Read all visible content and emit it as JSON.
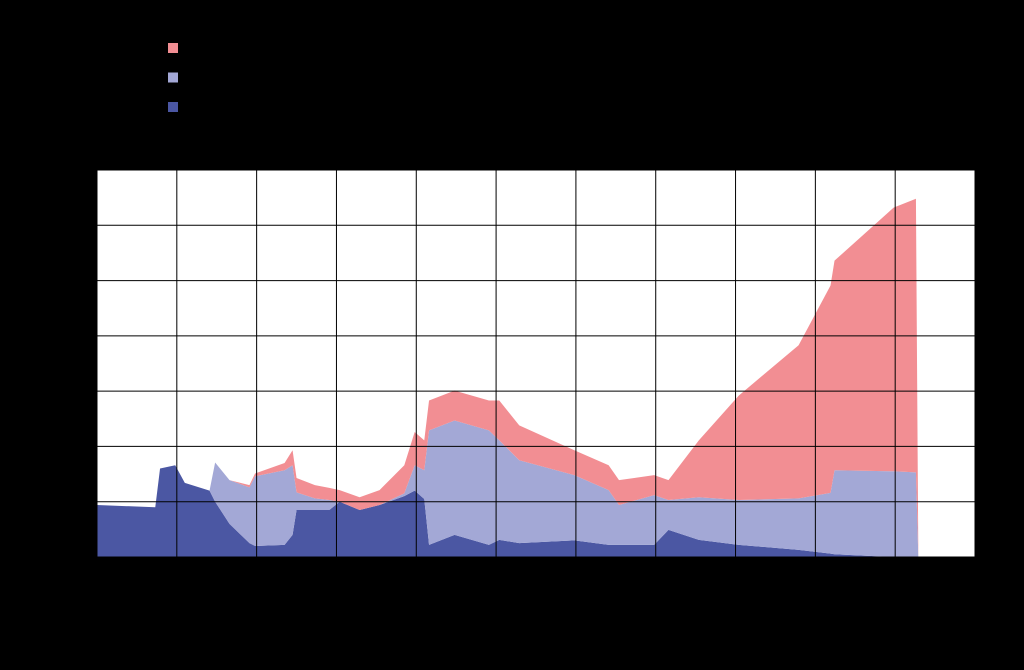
{
  "chart_data": {
    "type": "stacked_area",
    "x": [
      0,
      0.73,
      0.79,
      0.98,
      1.1,
      1.41,
      1.48,
      1.66,
      1.91,
      1.98,
      2.35,
      2.45,
      2.5,
      2.73,
      2.91,
      3.04,
      3.29,
      3.54,
      3.85,
      3.98,
      4.1,
      4.16,
      4.48,
      4.91,
      5.04,
      5.29,
      5.98,
      6.41,
      6.54,
      6.98,
      7.16,
      7.54,
      8.04,
      8.79,
      9.19,
      9.24,
      9.98,
      10.26,
      10.29
    ],
    "series": [
      {
        "color": "#4b57a3",
        "values": [
          0.94,
          0.9,
          1.6,
          1.66,
          1.34,
          1.2,
          1.0,
          0.6,
          0.25,
          0.2,
          0.22,
          0.4,
          0.85,
          0.85,
          0.85,
          1.0,
          0.85,
          0.94,
          1.1,
          1.2,
          1.05,
          0.22,
          0.4,
          0.22,
          0.31,
          0.25,
          0.3,
          0.22,
          0.22,
          0.22,
          0.49,
          0.31,
          0.22,
          0.13,
          0.06,
          0.05,
          0,
          0,
          0
        ]
      },
      {
        "color": "#a3a8d6",
        "values": [
          0,
          0,
          0,
          0,
          0,
          0,
          0.71,
          0.79,
          1.01,
          1.26,
          1.35,
          1.26,
          0.32,
          0.21,
          0.18,
          0,
          0,
          0,
          0.05,
          0.46,
          0.52,
          2.07,
          2.07,
          2.07,
          1.8,
          1.5,
          1.18,
          0.99,
          0.72,
          0.9,
          0.54,
          0.77,
          0.81,
          0.93,
          1.1,
          1.52,
          1.55,
          1.53,
          0
        ]
      },
      {
        "color": "#f28e93",
        "values": [
          0,
          0,
          0,
          0,
          0,
          0,
          0,
          0,
          0.04,
          0.05,
          0.13,
          0.27,
          0.26,
          0.24,
          0.22,
          0.21,
          0.23,
          0.27,
          0.51,
          0.6,
          0.54,
          0.54,
          0.54,
          0.54,
          0.72,
          0.63,
          0.45,
          0.45,
          0.45,
          0.36,
          0.36,
          1.03,
          1.89,
          2.77,
          3.75,
          3.79,
          4.77,
          4.95,
          0
        ]
      }
    ],
    "xlim": [
      0,
      11
    ],
    "xticks": [
      0,
      1,
      2,
      3,
      4,
      5,
      6,
      7,
      8,
      9,
      10,
      11
    ],
    "ylim": [
      0,
      7
    ],
    "yticks": [
      0,
      1,
      2,
      3,
      4,
      5,
      6,
      7
    ],
    "grid": true
  }
}
